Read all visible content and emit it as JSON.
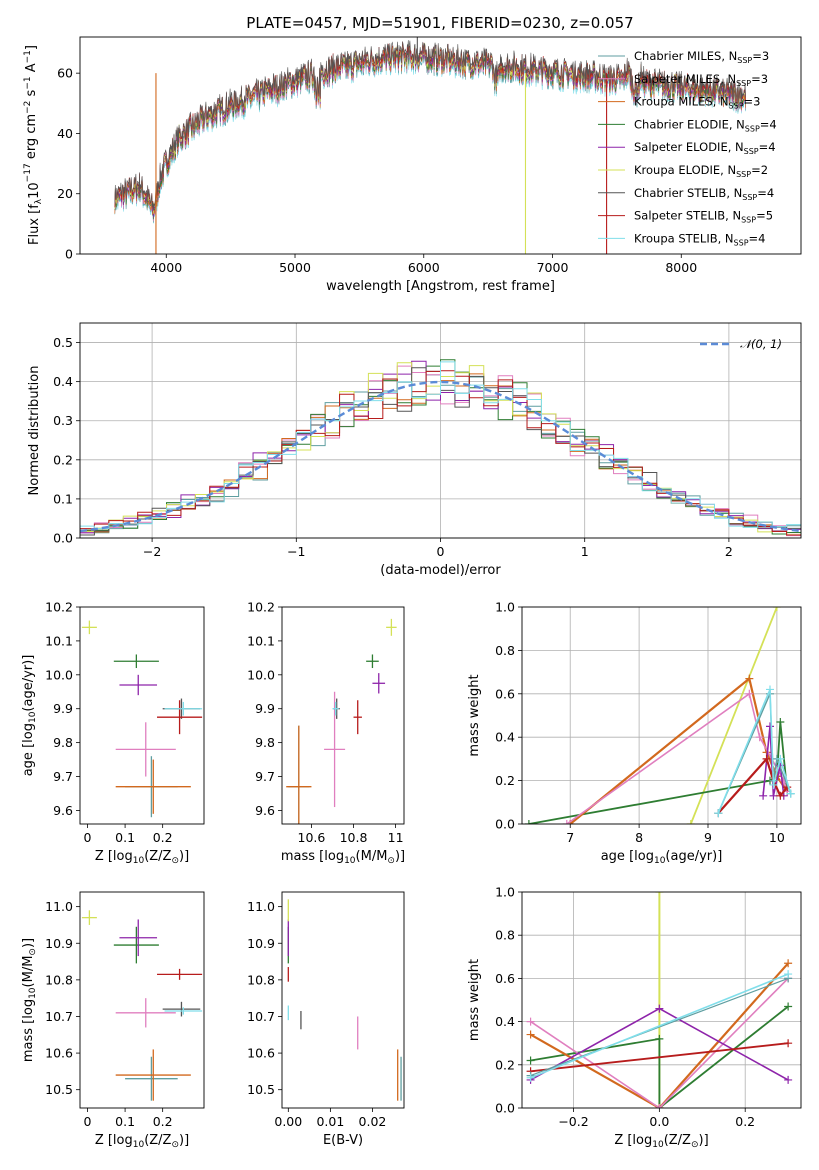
{
  "figure_title": "PLATE=0457, MJD=51901, FIBERID=0230, z=0.057",
  "legend_math": {
    "n": "N",
    "ssp": "SSP"
  },
  "series_styles": [
    {
      "imf": "Chabrier",
      "lib": "MILES",
      "nssp": 3,
      "color": "#5f9ea0"
    },
    {
      "imf": "Salpeter",
      "lib": "MILES",
      "nssp": 3,
      "color": "#e07fbf"
    },
    {
      "imf": "Kroupa",
      "lib": "MILES",
      "nssp": 3,
      "color": "#d2691e"
    },
    {
      "imf": "Chabrier",
      "lib": "ELODIE",
      "nssp": 4,
      "color": "#2e7d32"
    },
    {
      "imf": "Salpeter",
      "lib": "ELODIE",
      "nssp": 4,
      "color": "#8e24aa"
    },
    {
      "imf": "Kroupa",
      "lib": "ELODIE",
      "nssp": 2,
      "color": "#d4e157"
    },
    {
      "imf": "Chabrier",
      "lib": "STELIB",
      "nssp": 4,
      "color": "#555555"
    },
    {
      "imf": "Salpeter",
      "lib": "STELIB",
      "nssp": 5,
      "color": "#b71c1c"
    },
    {
      "imf": "Kroupa",
      "lib": "STELIB",
      "nssp": 4,
      "color": "#80deea"
    }
  ],
  "chart_data": [
    {
      "id": "spectrum",
      "type": "line",
      "xlabel": "wavelength [Angstrom, rest frame]",
      "ylabel_parts": [
        "Flux [f",
        "λ",
        "10",
        "−17",
        " erg cm",
        "−2",
        " s",
        "−1",
        " A",
        "−1",
        "]"
      ],
      "xlim": [
        3330,
        8930
      ],
      "ylim": [
        0,
        72
      ],
      "xticks": [
        4000,
        5000,
        6000,
        7000,
        8000
      ],
      "yticks": [
        0,
        20,
        40,
        60
      ],
      "x_range": [
        3600,
        8500
      ],
      "continuum": [
        [
          3600,
          18
        ],
        [
          3700,
          20
        ],
        [
          3800,
          22
        ],
        [
          3900,
          14
        ],
        [
          3950,
          24
        ],
        [
          4000,
          30
        ],
        [
          4100,
          38
        ],
        [
          4300,
          45
        ],
        [
          4500,
          49
        ],
        [
          4800,
          54
        ],
        [
          5000,
          57
        ],
        [
          5200,
          60
        ],
        [
          5400,
          62
        ],
        [
          5600,
          64
        ],
        [
          5800,
          65
        ],
        [
          6000,
          65
        ],
        [
          6200,
          64
        ],
        [
          6400,
          63
        ],
        [
          6600,
          62
        ],
        [
          6800,
          61
        ],
        [
          7000,
          60
        ],
        [
          7200,
          59
        ],
        [
          7400,
          58
        ],
        [
          7600,
          57
        ],
        [
          7800,
          56
        ],
        [
          8000,
          55
        ],
        [
          8200,
          54
        ],
        [
          8500,
          52
        ]
      ],
      "artifacts": [
        [
          3920,
          0,
          "#d2691e"
        ],
        [
          6790,
          0,
          "#d4e157"
        ],
        [
          7420,
          0,
          "#b71c1c"
        ],
        [
          5950,
          72,
          "#555555"
        ]
      ]
    },
    {
      "id": "residuals",
      "type": "step-histogram",
      "xlabel": "(data-model)/error",
      "ylabel": "Normed distribution",
      "xlim": [
        -2.5,
        2.5
      ],
      "ylim": [
        0,
        0.55
      ],
      "xticks": [
        -2,
        -1,
        0,
        1,
        2
      ],
      "xtick_labels": [
        "−2",
        "−1",
        "0",
        "1",
        "2"
      ],
      "yticks": [
        0.0,
        0.1,
        0.2,
        0.3,
        0.4,
        0.5
      ],
      "bin_width": 0.1,
      "grid": true,
      "gaussian_label": "𝒩(0, 1)",
      "gaussian_color": "#5b8bd6"
    },
    {
      "id": "age-vs-Z",
      "type": "errorbar",
      "xlabel_parts": [
        "Z [log",
        "10",
        "(Z/Z",
        "⊙",
        ")]"
      ],
      "ylabel_parts": [
        "age  [log",
        "10",
        "(age/yr)]"
      ],
      "xlim": [
        -0.02,
        0.31
      ],
      "ylim": [
        9.56,
        10.2
      ],
      "xticks": [
        0.0,
        0.1,
        0.2
      ],
      "yticks": [
        9.6,
        9.7,
        9.8,
        9.9,
        10.0,
        10.1,
        10.2
      ],
      "points": [
        {
          "s": 0,
          "x": 0.17,
          "y": 9.67,
          "xe": 0.07,
          "ye": 0.09
        },
        {
          "s": 1,
          "x": 0.155,
          "y": 9.78,
          "xe": 0.08,
          "ye": 0.08
        },
        {
          "s": 2,
          "x": 0.175,
          "y": 9.67,
          "xe": 0.1,
          "ye": 0.08
        },
        {
          "s": 3,
          "x": 0.13,
          "y": 10.04,
          "xe": 0.06,
          "ye": 0.02
        },
        {
          "s": 4,
          "x": 0.135,
          "y": 9.97,
          "xe": 0.05,
          "ye": 0.03
        },
        {
          "s": 5,
          "x": 0.005,
          "y": 10.14,
          "xe": 0.02,
          "ye": 0.02
        },
        {
          "s": 6,
          "x": 0.25,
          "y": 9.9,
          "xe": 0.05,
          "ye": 0.03
        },
        {
          "s": 7,
          "x": 0.245,
          "y": 9.875,
          "xe": 0.06,
          "ye": 0.05
        },
        {
          "s": 8,
          "x": 0.255,
          "y": 9.9,
          "xe": 0.05,
          "ye": 0.02
        }
      ]
    },
    {
      "id": "age-vs-mass",
      "type": "errorbar",
      "xlabel_parts": [
        "mass [log",
        "10",
        "(M/M",
        "⊙",
        ")]"
      ],
      "xlim": [
        10.46,
        11.04
      ],
      "ylim": [
        9.56,
        10.2
      ],
      "xticks": [
        10.6,
        10.8,
        11.0
      ],
      "yticks": [
        9.6,
        9.7,
        9.8,
        9.9,
        10.0,
        10.1,
        10.2
      ],
      "points": [
        {
          "s": 0,
          "x": 10.54,
          "y": 9.67,
          "xe": 0.05,
          "ye": 0.18
        },
        {
          "s": 1,
          "x": 10.71,
          "y": 9.78,
          "xe": 0.05,
          "ye": 0.17
        },
        {
          "s": 2,
          "x": 10.54,
          "y": 9.67,
          "xe": 0.06,
          "ye": 0.18
        },
        {
          "s": 3,
          "x": 10.89,
          "y": 10.04,
          "xe": 0.03,
          "ye": 0.02
        },
        {
          "s": 4,
          "x": 10.92,
          "y": 9.975,
          "xe": 0.03,
          "ye": 0.03
        },
        {
          "s": 5,
          "x": 10.98,
          "y": 10.14,
          "xe": 0.025,
          "ye": 0.025
        },
        {
          "s": 6,
          "x": 10.72,
          "y": 9.9,
          "xe": 0.015,
          "ye": 0.03
        },
        {
          "s": 7,
          "x": 10.82,
          "y": 9.875,
          "xe": 0.02,
          "ye": 0.05
        },
        {
          "s": 8,
          "x": 10.715,
          "y": 9.9,
          "xe": 0.015,
          "ye": 0.02
        }
      ]
    },
    {
      "id": "weight-vs-age",
      "type": "line",
      "xlabel_parts": [
        "age  [log",
        "10",
        "(age/yr)]"
      ],
      "ylabel": "mass weight",
      "xlim": [
        6.3,
        10.35
      ],
      "ylim": [
        0,
        1
      ],
      "xticks": [
        7,
        8,
        9,
        10
      ],
      "yticks": [
        0.0,
        0.2,
        0.4,
        0.6,
        0.8,
        1.0
      ],
      "grid": true,
      "series": [
        {
          "s": 5,
          "x": [
            8.75,
            10.0,
            10.1
          ],
          "y": [
            0.0,
            1.0,
            1.05
          ],
          "w": 1.8
        },
        {
          "s": 3,
          "x": [
            6.4,
            9.9,
            10.0,
            10.05,
            10.15
          ],
          "y": [
            0.0,
            0.2,
            0.22,
            0.47,
            0.15
          ],
          "w": 1.8
        },
        {
          "s": 2,
          "x": [
            7.0,
            9.6,
            9.85,
            10.0,
            10.15
          ],
          "y": [
            0.0,
            0.67,
            0.33,
            0.22,
            0.15
          ],
          "w": 2.2
        },
        {
          "s": 1,
          "x": [
            6.95,
            9.6,
            9.75,
            10.1,
            10.15
          ],
          "y": [
            0.0,
            0.6,
            0.4,
            0.2,
            0.15
          ],
          "w": 1.6
        },
        {
          "s": 4,
          "x": [
            9.8,
            9.9,
            9.95,
            10.05,
            10.1
          ],
          "y": [
            0.13,
            0.45,
            0.13,
            0.27,
            0.13
          ],
          "w": 1.6
        },
        {
          "s": 7,
          "x": [
            9.15,
            9.85,
            9.95,
            10.05,
            10.15
          ],
          "y": [
            0.05,
            0.3,
            0.2,
            0.13,
            0.17
          ],
          "w": 2.2
        },
        {
          "s": 0,
          "x": [
            9.15,
            9.9,
            9.95,
            10.0,
            10.2
          ],
          "y": [
            0.05,
            0.6,
            0.2,
            0.3,
            0.14
          ],
          "w": 1.4
        },
        {
          "s": 8,
          "x": [
            9.15,
            9.9,
            9.95,
            10.05,
            10.2
          ],
          "y": [
            0.05,
            0.62,
            0.18,
            0.3,
            0.14
          ],
          "w": 1.6
        }
      ]
    },
    {
      "id": "mass-vs-Z",
      "type": "errorbar",
      "xlabel_parts": [
        "Z [log",
        "10",
        "(Z/Z",
        "⊙",
        ")]"
      ],
      "ylabel_parts": [
        "mass [log",
        "10",
        "(M/M",
        "⊙",
        ")]"
      ],
      "xlim": [
        -0.02,
        0.31
      ],
      "ylim": [
        10.45,
        11.04
      ],
      "xticks": [
        0.0,
        0.1,
        0.2
      ],
      "yticks": [
        10.5,
        10.6,
        10.7,
        10.8,
        10.9,
        11.0
      ],
      "points": [
        {
          "s": 0,
          "x": 0.17,
          "y": 10.53,
          "xe": 0.07,
          "ye": 0.06
        },
        {
          "s": 1,
          "x": 0.155,
          "y": 10.71,
          "xe": 0.08,
          "ye": 0.04
        },
        {
          "s": 2,
          "x": 0.175,
          "y": 10.54,
          "xe": 0.1,
          "ye": 0.07
        },
        {
          "s": 3,
          "x": 0.13,
          "y": 10.895,
          "xe": 0.06,
          "ye": 0.05
        },
        {
          "s": 4,
          "x": 0.135,
          "y": 10.915,
          "xe": 0.05,
          "ye": 0.05
        },
        {
          "s": 5,
          "x": 0.005,
          "y": 10.97,
          "xe": 0.02,
          "ye": 0.02
        },
        {
          "s": 6,
          "x": 0.25,
          "y": 10.72,
          "xe": 0.05,
          "ye": 0.02
        },
        {
          "s": 7,
          "x": 0.245,
          "y": 10.815,
          "xe": 0.06,
          "ye": 0.015
        },
        {
          "s": 8,
          "x": 0.255,
          "y": 10.715,
          "xe": 0.05,
          "ye": 0.01
        }
      ]
    },
    {
      "id": "mass-vs-EBV",
      "type": "errorbar",
      "xlabel": "E(B-V)",
      "xlim": [
        -0.0015,
        0.0275
      ],
      "ylim": [
        10.45,
        11.04
      ],
      "xticks": [
        0.0,
        0.01,
        0.02
      ],
      "xtick_labels": [
        "0.00",
        "0.01",
        "0.02"
      ],
      "yticks": [
        10.5,
        10.6,
        10.7,
        10.8,
        10.9,
        11.0
      ],
      "points": [
        {
          "s": 0,
          "x": 0.0268,
          "y": 10.53,
          "xe": 0.0,
          "ye": 0.06
        },
        {
          "s": 1,
          "x": 0.0165,
          "y": 10.655,
          "xe": 0.0,
          "ye": 0.045
        },
        {
          "s": 2,
          "x": 0.026,
          "y": 10.54,
          "xe": 0.0,
          "ye": 0.07
        },
        {
          "s": 3,
          "x": 0.0,
          "y": 10.895,
          "xe": 0.0,
          "ye": 0.05
        },
        {
          "s": 4,
          "x": 0.0,
          "y": 10.915,
          "xe": 0.0,
          "ye": 0.05
        },
        {
          "s": 5,
          "x": 0.0,
          "y": 10.99,
          "xe": 0.0,
          "ye": 0.03
        },
        {
          "s": 6,
          "x": 0.003,
          "y": 10.69,
          "xe": 0.0,
          "ye": 0.025
        },
        {
          "s": 7,
          "x": 0.0,
          "y": 10.815,
          "xe": 0.0,
          "ye": 0.02
        },
        {
          "s": 8,
          "x": 0.0,
          "y": 10.71,
          "xe": 0.0,
          "ye": 0.02
        }
      ]
    },
    {
      "id": "weight-vs-Z",
      "type": "line",
      "xlabel_parts": [
        "Z [log",
        "10",
        "(Z/Z",
        "⊙",
        ")]"
      ],
      "ylabel": "mass weight",
      "xlim": [
        -0.32,
        0.33
      ],
      "ylim": [
        0,
        1
      ],
      "xticks": [
        -0.2,
        0.0,
        0.2
      ],
      "xtick_labels": [
        "−0.2",
        "0.0",
        "0.2"
      ],
      "yticks": [
        0.0,
        0.2,
        0.4,
        0.6,
        0.8,
        1.0
      ],
      "grid": true,
      "series": [
        {
          "s": 5,
          "x": [
            0.0,
            0.0
          ],
          "y": [
            0.0,
            1.0
          ],
          "w": 2.0
        },
        {
          "s": 3,
          "x": [
            -0.3,
            0.0,
            0.0,
            0.3
          ],
          "y": [
            0.22,
            0.32,
            0.0,
            0.47
          ],
          "w": 1.8
        },
        {
          "s": 2,
          "x": [
            -0.3,
            0.0,
            0.3
          ],
          "y": [
            0.34,
            0.0,
            0.67
          ],
          "w": 2.2
        },
        {
          "s": 1,
          "x": [
            -0.3,
            0.0,
            0.3
          ],
          "y": [
            0.4,
            0.0,
            0.6
          ],
          "w": 1.6
        },
        {
          "s": 4,
          "x": [
            -0.3,
            0.0,
            0.3
          ],
          "y": [
            0.13,
            0.46,
            0.13
          ],
          "w": 1.6
        },
        {
          "s": 7,
          "x": [
            -0.3,
            0.3
          ],
          "y": [
            0.17,
            0.3
          ],
          "w": 1.8
        },
        {
          "s": 0,
          "x": [
            -0.3,
            0.3
          ],
          "y": [
            0.15,
            0.6
          ],
          "w": 1.2
        },
        {
          "s": 8,
          "x": [
            -0.3,
            0.3
          ],
          "y": [
            0.14,
            0.62
          ],
          "w": 1.6
        }
      ]
    }
  ]
}
